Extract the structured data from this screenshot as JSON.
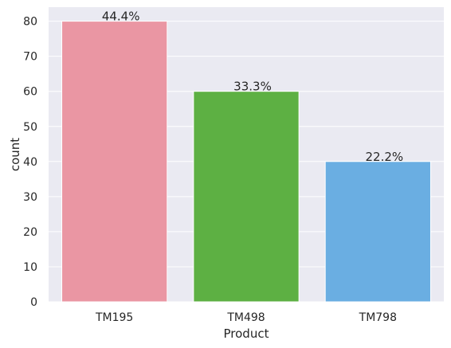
{
  "chart_data": {
    "type": "bar",
    "categories": [
      "TM195",
      "TM498",
      "TM798"
    ],
    "values": [
      80,
      60,
      40
    ],
    "data_labels": [
      "44.4%",
      "33.3%",
      "22.2%"
    ],
    "colors": [
      "#ea96a3",
      "#5db043",
      "#6aaee2"
    ],
    "xlabel": "Product",
    "ylabel": "count",
    "ylim": [
      0,
      84
    ],
    "yticks": [
      0,
      10,
      20,
      30,
      40,
      50,
      60,
      70,
      80
    ],
    "grid": true,
    "background": "#eaeaf2",
    "grid_color": "#ffffff"
  }
}
